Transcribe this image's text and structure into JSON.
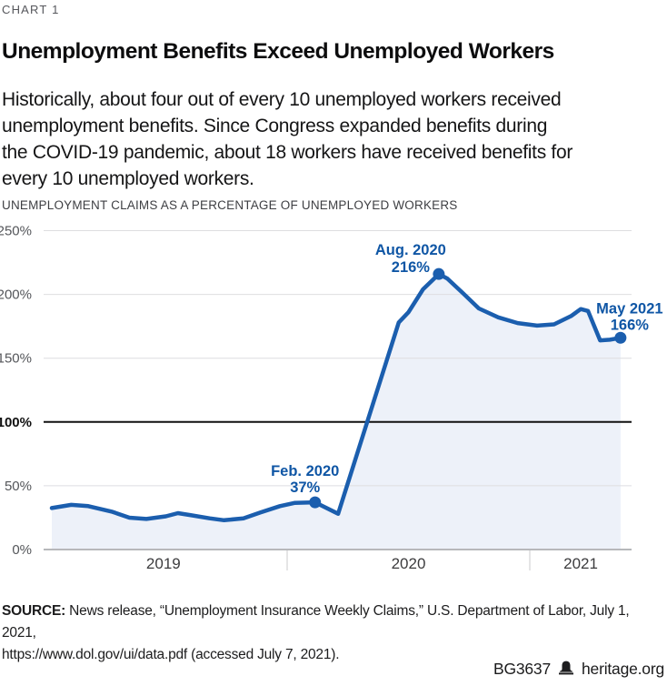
{
  "page": {
    "kicker": "CHART 1",
    "title": "Unemployment Benefits Exceed Unemployed Workers",
    "subtitle": "Historically, about four out of every 10 unemployed workers received\nunemployment benefits. Since Congress expanded benefits during\nthe COVID-19 pandemic, about 18 workers have received benefits for\nevery 10 unemployed workers.",
    "source": {
      "label": "SOURCE:",
      "text": " News release, “Unemployment Insurance Weekly Claims,” U.S. Department of Labor, July 1, 2021,\nhttps://www.dol.gov/ui/data.pdf (accessed July 7, 2021)."
    },
    "footer": {
      "doc_id": "BG3637",
      "site": "heritage.org",
      "icon": "heritage-bell-icon"
    }
  },
  "colors": {
    "line_blue": "#1b5eae",
    "annotation_blue": "#0f56a5",
    "area_fill": "#edf1f9",
    "grid": "#dedee0",
    "emphasis_line": "#111111",
    "baseline": "#b7b8bb",
    "tick": "#dcdcde"
  },
  "chart_data": {
    "type": "line",
    "title": "UNEMPLOYMENT CLAIMS AS A PERCENTAGE OF UNEMPLOYED WORKERS",
    "xlabel": "",
    "ylabel": "Unemployment claims as a percentage of unemployed workers",
    "ylim": [
      0,
      250
    ],
    "x_range_years": [
      2019.0,
      2021.42
    ],
    "grid": true,
    "legend": "none",
    "y_ticks": [
      {
        "value": 0,
        "label": "0%"
      },
      {
        "value": 50,
        "label": "50%"
      },
      {
        "value": 100,
        "label": "100%",
        "emphasis": true
      },
      {
        "value": 150,
        "label": "150%"
      },
      {
        "value": 200,
        "label": "200%"
      },
      {
        "value": 250,
        "label": "250%"
      }
    ],
    "x_tick_marks": [
      2020,
      2021
    ],
    "x_labels": [
      {
        "label": "2019",
        "center_year": 2019.49
      },
      {
        "label": "2020",
        "center_year": 2020.5
      },
      {
        "label": "2021",
        "center_year": 2021.21
      }
    ],
    "series": [
      {
        "name": "Unemployment claims as a percentage of unemployed workers",
        "points": [
          [
            2019.03,
            32.5
          ],
          [
            2019.11,
            35
          ],
          [
            2019.18,
            34
          ],
          [
            2019.28,
            29.5
          ],
          [
            2019.35,
            25
          ],
          [
            2019.42,
            24
          ],
          [
            2019.5,
            26
          ],
          [
            2019.55,
            28.5
          ],
          [
            2019.6,
            27
          ],
          [
            2019.68,
            24.5
          ],
          [
            2019.74,
            23
          ],
          [
            2019.82,
            24.5
          ],
          [
            2019.89,
            29
          ],
          [
            2019.97,
            34
          ],
          [
            2020.03,
            36.5
          ],
          [
            2020.115,
            37
          ],
          [
            2020.21,
            28
          ],
          [
            2020.46,
            178
          ],
          [
            2020.5,
            186
          ],
          [
            2020.56,
            204
          ],
          [
            2020.625,
            216
          ],
          [
            2020.66,
            212.5
          ],
          [
            2020.73,
            200
          ],
          [
            2020.79,
            189
          ],
          [
            2020.87,
            182
          ],
          [
            2020.95,
            177.5
          ],
          [
            2021.03,
            175.5
          ],
          [
            2021.1,
            176.5
          ],
          [
            2021.17,
            183
          ],
          [
            2021.21,
            188.5
          ],
          [
            2021.24,
            187
          ],
          [
            2021.29,
            164
          ],
          [
            2021.33,
            164.5
          ],
          [
            2021.374,
            166
          ]
        ]
      }
    ],
    "annotations": [
      {
        "label": "Feb. 2020",
        "value_label": "37%",
        "year": 2020.115,
        "value": 37,
        "text_dx": -11,
        "text_dy1": -29,
        "text_dy2": -11
      },
      {
        "label": "Aug. 2020",
        "value_label": "216%",
        "year": 2020.625,
        "value": 216,
        "text_dx": -31,
        "text_dy1": -21,
        "text_dy2": -2
      },
      {
        "label": "May 2021",
        "value_label": "166%",
        "year": 2021.374,
        "value": 166,
        "text_dx": 10,
        "text_dy1": -27,
        "text_dy2": -9
      }
    ]
  }
}
